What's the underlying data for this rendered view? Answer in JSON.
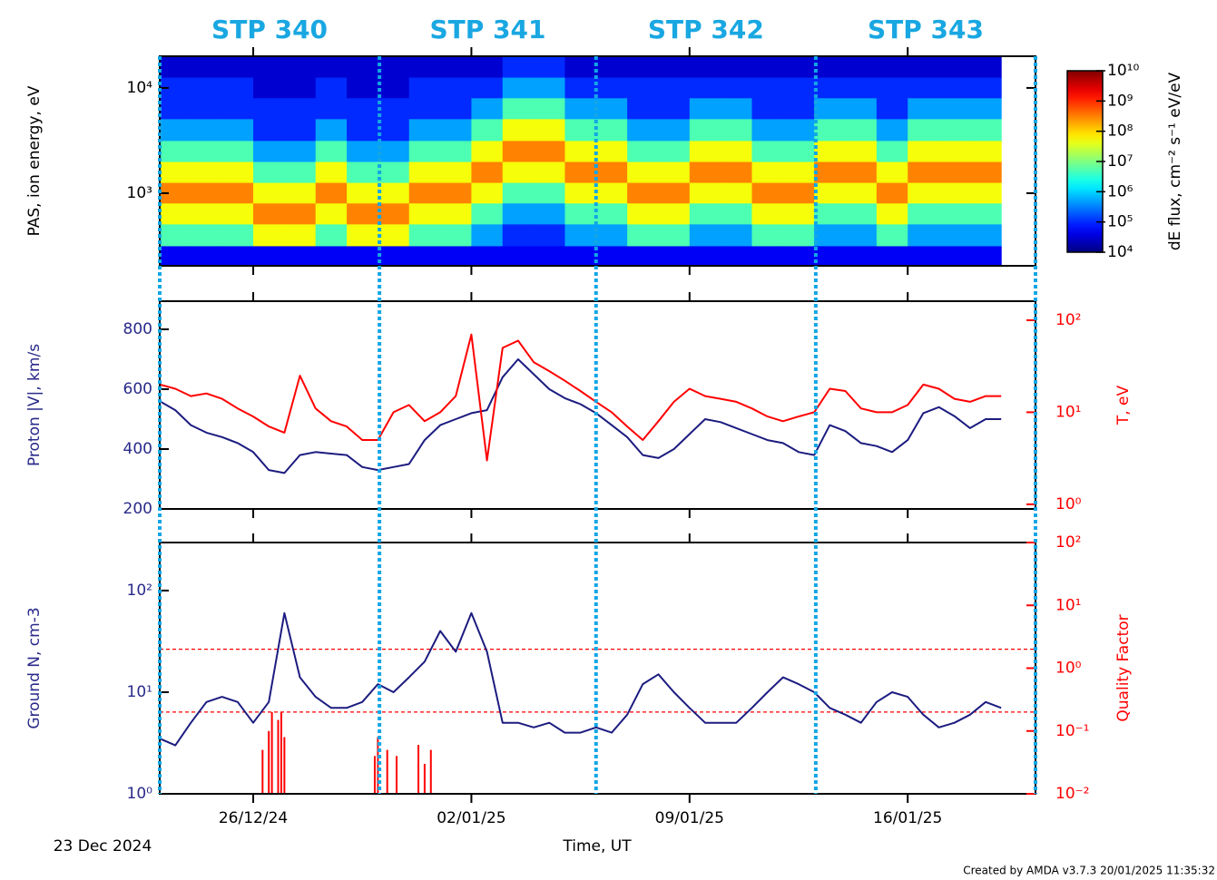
{
  "stp": {
    "labels": [
      "STP 340",
      "STP 341",
      "STP 342",
      "STP 343"
    ],
    "boundaries": [
      0,
      7.05,
      14,
      21.05,
      28.1
    ]
  },
  "time_axis": {
    "label": "Time, UT",
    "start_label": "23 Dec 2024",
    "xlim": [
      0,
      28.1
    ],
    "xticks": [
      {
        "value": 3,
        "label": "26/12/24"
      },
      {
        "value": 10,
        "label": "02/01/25"
      },
      {
        "value": 17,
        "label": "09/01/25"
      },
      {
        "value": 24,
        "label": "16/01/25"
      }
    ]
  },
  "footer": "Created by AMDA v3.7.3 20/01/2025 11:35:32",
  "chart_data": [
    {
      "type": "spectrogram",
      "ylabel": "PAS, ion energy, eV",
      "ylim": [
        204,
        20000
      ],
      "ylog": true,
      "yticks": [
        {
          "value": 1000,
          "label": "10³"
        },
        {
          "value": 10000,
          "label": "10⁴"
        }
      ],
      "energies": [
        250,
        400,
        650,
        1000,
        1600,
        2500,
        4000,
        6500,
        10000,
        16000
      ],
      "x": [
        0,
        1,
        2,
        3,
        4,
        5,
        6,
        7,
        8,
        9,
        10,
        11,
        12,
        13,
        14,
        15,
        16,
        17,
        18,
        19,
        20,
        21,
        22,
        23,
        24,
        25,
        26,
        27
      ],
      "z": [
        [
          50000.0,
          5000000.0,
          50000000.0,
          300000000.0,
          50000000.0,
          5000000.0,
          500000.0,
          100000.0,
          100000.0,
          30000.0
        ],
        [
          50000.0,
          5000000.0,
          50000000.0,
          300000000.0,
          50000000.0,
          5000000.0,
          500000.0,
          100000.0,
          100000.0,
          30000.0
        ],
        [
          50000.0,
          5000000.0,
          50000000.0,
          300000000.0,
          50000000.0,
          5000000.0,
          500000.0,
          100000.0,
          100000.0,
          30000.0
        ],
        [
          50000.0,
          50000000.0,
          300000000.0,
          50000000.0,
          5000000.0,
          500000.0,
          100000.0,
          100000.0,
          30000.0,
          30000.0
        ],
        [
          50000.0,
          50000000.0,
          300000000.0,
          50000000.0,
          5000000.0,
          500000.0,
          100000.0,
          100000.0,
          30000.0,
          30000.0
        ],
        [
          50000.0,
          5000000.0,
          50000000.0,
          300000000.0,
          50000000.0,
          5000000.0,
          500000.0,
          100000.0,
          100000.0,
          30000.0
        ],
        [
          50000.0,
          50000000.0,
          300000000.0,
          50000000.0,
          5000000.0,
          500000.0,
          100000.0,
          100000.0,
          30000.0,
          30000.0
        ],
        [
          50000.0,
          50000000.0,
          300000000.0,
          50000000.0,
          5000000.0,
          500000.0,
          100000.0,
          100000.0,
          30000.0,
          30000.0
        ],
        [
          50000.0,
          5000000.0,
          50000000.0,
          300000000.0,
          50000000.0,
          5000000.0,
          500000.0,
          100000.0,
          100000.0,
          30000.0
        ],
        [
          50000.0,
          5000000.0,
          50000000.0,
          300000000.0,
          50000000.0,
          5000000.0,
          500000.0,
          100000.0,
          100000.0,
          30000.0
        ],
        [
          50000.0,
          500000.0,
          5000000.0,
          50000000.0,
          300000000.0,
          50000000.0,
          5000000.0,
          500000.0,
          100000.0,
          30000.0
        ],
        [
          50000.0,
          100000.0,
          500000.0,
          5000000.0,
          50000000.0,
          300000000.0,
          50000000.0,
          5000000.0,
          500000.0,
          100000.0
        ],
        [
          50000.0,
          100000.0,
          500000.0,
          5000000.0,
          50000000.0,
          300000000.0,
          50000000.0,
          5000000.0,
          500000.0,
          100000.0
        ],
        [
          50000.0,
          500000.0,
          5000000.0,
          50000000.0,
          300000000.0,
          50000000.0,
          5000000.0,
          500000.0,
          100000.0,
          30000.0
        ],
        [
          50000.0,
          500000.0,
          5000000.0,
          50000000.0,
          300000000.0,
          50000000.0,
          5000000.0,
          500000.0,
          100000.0,
          30000.0
        ],
        [
          50000.0,
          5000000.0,
          50000000.0,
          300000000.0,
          50000000.0,
          5000000.0,
          500000.0,
          100000.0,
          100000.0,
          30000.0
        ],
        [
          50000.0,
          5000000.0,
          50000000.0,
          300000000.0,
          50000000.0,
          5000000.0,
          500000.0,
          100000.0,
          100000.0,
          30000.0
        ],
        [
          50000.0,
          500000.0,
          5000000.0,
          50000000.0,
          300000000.0,
          50000000.0,
          5000000.0,
          500000.0,
          100000.0,
          30000.0
        ],
        [
          50000.0,
          500000.0,
          5000000.0,
          50000000.0,
          300000000.0,
          50000000.0,
          5000000.0,
          500000.0,
          100000.0,
          30000.0
        ],
        [
          50000.0,
          5000000.0,
          50000000.0,
          300000000.0,
          50000000.0,
          5000000.0,
          500000.0,
          100000.0,
          100000.0,
          30000.0
        ],
        [
          50000.0,
          5000000.0,
          50000000.0,
          300000000.0,
          50000000.0,
          5000000.0,
          500000.0,
          100000.0,
          100000.0,
          30000.0
        ],
        [
          50000.0,
          500000.0,
          5000000.0,
          50000000.0,
          300000000.0,
          50000000.0,
          5000000.0,
          500000.0,
          100000.0,
          30000.0
        ],
        [
          50000.0,
          500000.0,
          5000000.0,
          50000000.0,
          300000000.0,
          50000000.0,
          5000000.0,
          500000.0,
          100000.0,
          30000.0
        ],
        [
          50000.0,
          5000000.0,
          50000000.0,
          300000000.0,
          50000000.0,
          5000000.0,
          500000.0,
          100000.0,
          100000.0,
          30000.0
        ],
        [
          50000.0,
          500000.0,
          5000000.0,
          50000000.0,
          300000000.0,
          50000000.0,
          5000000.0,
          500000.0,
          100000.0,
          30000.0
        ],
        [
          50000.0,
          500000.0,
          5000000.0,
          50000000.0,
          300000000.0,
          50000000.0,
          5000000.0,
          500000.0,
          100000.0,
          30000.0
        ],
        [
          50000.0,
          500000.0,
          5000000.0,
          50000000.0,
          300000000.0,
          50000000.0,
          5000000.0,
          500000.0,
          100000.0,
          30000.0
        ],
        [
          null,
          null,
          null,
          null,
          null,
          null,
          null,
          null,
          null,
          null
        ]
      ],
      "colorbar": {
        "label": "dE flux, cm⁻² s⁻¹ eV/eV",
        "zlim": [
          10000,
          10000000000
        ],
        "log": true,
        "ticks": [
          {
            "value": 10000,
            "label": "10⁴"
          },
          {
            "value": 100000,
            "label": "10⁵"
          },
          {
            "value": 1000000,
            "label": "10⁶"
          },
          {
            "value": 10000000,
            "label": "10⁷"
          },
          {
            "value": 100000000,
            "label": "10⁸"
          },
          {
            "value": 1000000000,
            "label": "10⁹"
          },
          {
            "value": 10000000000,
            "label": "10¹⁰"
          }
        ]
      }
    },
    {
      "type": "line",
      "ylabel": "Proton |V|, km/s",
      "ylabel_color": "#2a2a8a",
      "y2label": "T, eV",
      "y2label_color": "#ff0000",
      "ylim": [
        200,
        894
      ],
      "yticks": [
        200,
        400,
        600,
        800
      ],
      "y2lim": [
        0.89,
        161
      ],
      "y2log": true,
      "y2ticks": [
        {
          "value": 1,
          "label": "10⁰"
        },
        {
          "value": 10,
          "label": "10¹"
        },
        {
          "value": 100,
          "label": "10²"
        }
      ],
      "x": [
        0,
        0.5,
        1,
        1.5,
        2,
        2.5,
        3,
        3.5,
        4,
        4.5,
        5,
        5.5,
        6,
        6.5,
        7,
        7.5,
        8,
        8.5,
        9,
        9.5,
        10,
        10.5,
        11,
        11.5,
        12,
        12.5,
        13,
        13.5,
        14,
        14.5,
        15,
        15.5,
        16,
        16.5,
        17,
        17.5,
        18,
        18.5,
        19,
        19.5,
        20,
        20.5,
        21,
        21.5,
        22,
        22.5,
        23,
        23.5,
        24,
        24.5,
        25,
        25.5,
        26,
        26.5,
        27
      ],
      "series": [
        {
          "color": "#1c1c80",
          "values": [
            560,
            530,
            480,
            455,
            440,
            420,
            390,
            330,
            320,
            380,
            390,
            385,
            380,
            340,
            330,
            340,
            350,
            430,
            480,
            500,
            520,
            530,
            640,
            700,
            650,
            600,
            570,
            550,
            520,
            480,
            440,
            380,
            370,
            400,
            450,
            500,
            490,
            470,
            450,
            430,
            420,
            390,
            380,
            480,
            460,
            420,
            410,
            390,
            430,
            520,
            540,
            510,
            470,
            500,
            500
          ]
        },
        {
          "color": "#ff0000",
          "axis": "y2",
          "values": [
            20,
            18,
            15,
            16,
            14,
            11,
            9,
            7,
            6,
            25,
            11,
            8,
            7,
            5,
            5,
            10,
            12,
            8,
            10,
            15,
            70,
            3,
            50,
            60,
            35,
            28,
            22,
            17,
            13,
            10,
            7,
            5,
            8,
            13,
            18,
            15,
            14,
            13,
            11,
            9,
            8,
            9,
            10,
            18,
            17,
            11,
            10,
            10,
            12,
            20,
            18,
            14,
            13,
            15,
            15
          ]
        }
      ]
    },
    {
      "type": "line",
      "ylabel": "Ground N, cm-3",
      "ylabel_color": "#2a2a8a",
      "y2label": "Quality Factor",
      "y2label_color": "#ff0000",
      "ylim": [
        1,
        297
      ],
      "ylog": true,
      "yticks": [
        {
          "value": 1,
          "label": "10⁰"
        },
        {
          "value": 10,
          "label": "10¹"
        },
        {
          "value": 100,
          "label": "10²"
        }
      ],
      "y2lim": [
        0.01,
        100
      ],
      "y2log": true,
      "y2ticks": [
        {
          "value": 0.01,
          "label": "10⁻²"
        },
        {
          "value": 0.1,
          "label": "10⁻¹"
        },
        {
          "value": 1,
          "label": "10⁰"
        },
        {
          "value": 10,
          "label": "10¹"
        },
        {
          "value": 100,
          "label": "10²"
        }
      ],
      "hlines": [
        2,
        0.2
      ],
      "hline_color": "#ff0000",
      "x": [
        0,
        0.5,
        1,
        1.5,
        2,
        2.5,
        3,
        3.5,
        4,
        4.5,
        5,
        5.5,
        6,
        6.5,
        7,
        7.5,
        8,
        8.5,
        9,
        9.5,
        10,
        10.5,
        11,
        11.5,
        12,
        12.5,
        13,
        13.5,
        14,
        14.5,
        15,
        15.5,
        16,
        16.5,
        17,
        17.5,
        18,
        18.5,
        19,
        19.5,
        20,
        20.5,
        21,
        21.5,
        22,
        22.5,
        23,
        23.5,
        24,
        24.5,
        25,
        25.5,
        26,
        26.5,
        27
      ],
      "series": [
        {
          "color": "#1c1c80",
          "values": [
            3.5,
            3,
            5,
            8,
            9,
            8,
            5,
            8,
            60,
            14,
            9,
            7,
            7,
            8,
            12,
            10,
            14,
            20,
            40,
            25,
            60,
            25,
            5,
            5,
            4.5,
            5,
            4,
            4,
            4.5,
            4,
            6,
            12,
            15,
            10,
            7,
            5,
            5,
            5,
            7,
            10,
            14,
            12,
            10,
            7,
            6,
            5,
            8,
            10,
            9,
            6,
            4.5,
            5,
            6,
            8,
            7
          ]
        },
        {
          "color": "#ff0000",
          "axis": "y2",
          "style": "stems",
          "x": [
            3.3,
            3.5,
            3.6,
            3.8,
            3.9,
            4.0,
            6.9,
            7.0,
            7.3,
            7.6,
            8.3,
            8.5,
            8.7
          ],
          "values": [
            0.05,
            0.1,
            0.2,
            0.15,
            0.2,
            0.08,
            0.04,
            0.08,
            0.05,
            0.04,
            0.06,
            0.03,
            0.05
          ]
        }
      ]
    }
  ]
}
